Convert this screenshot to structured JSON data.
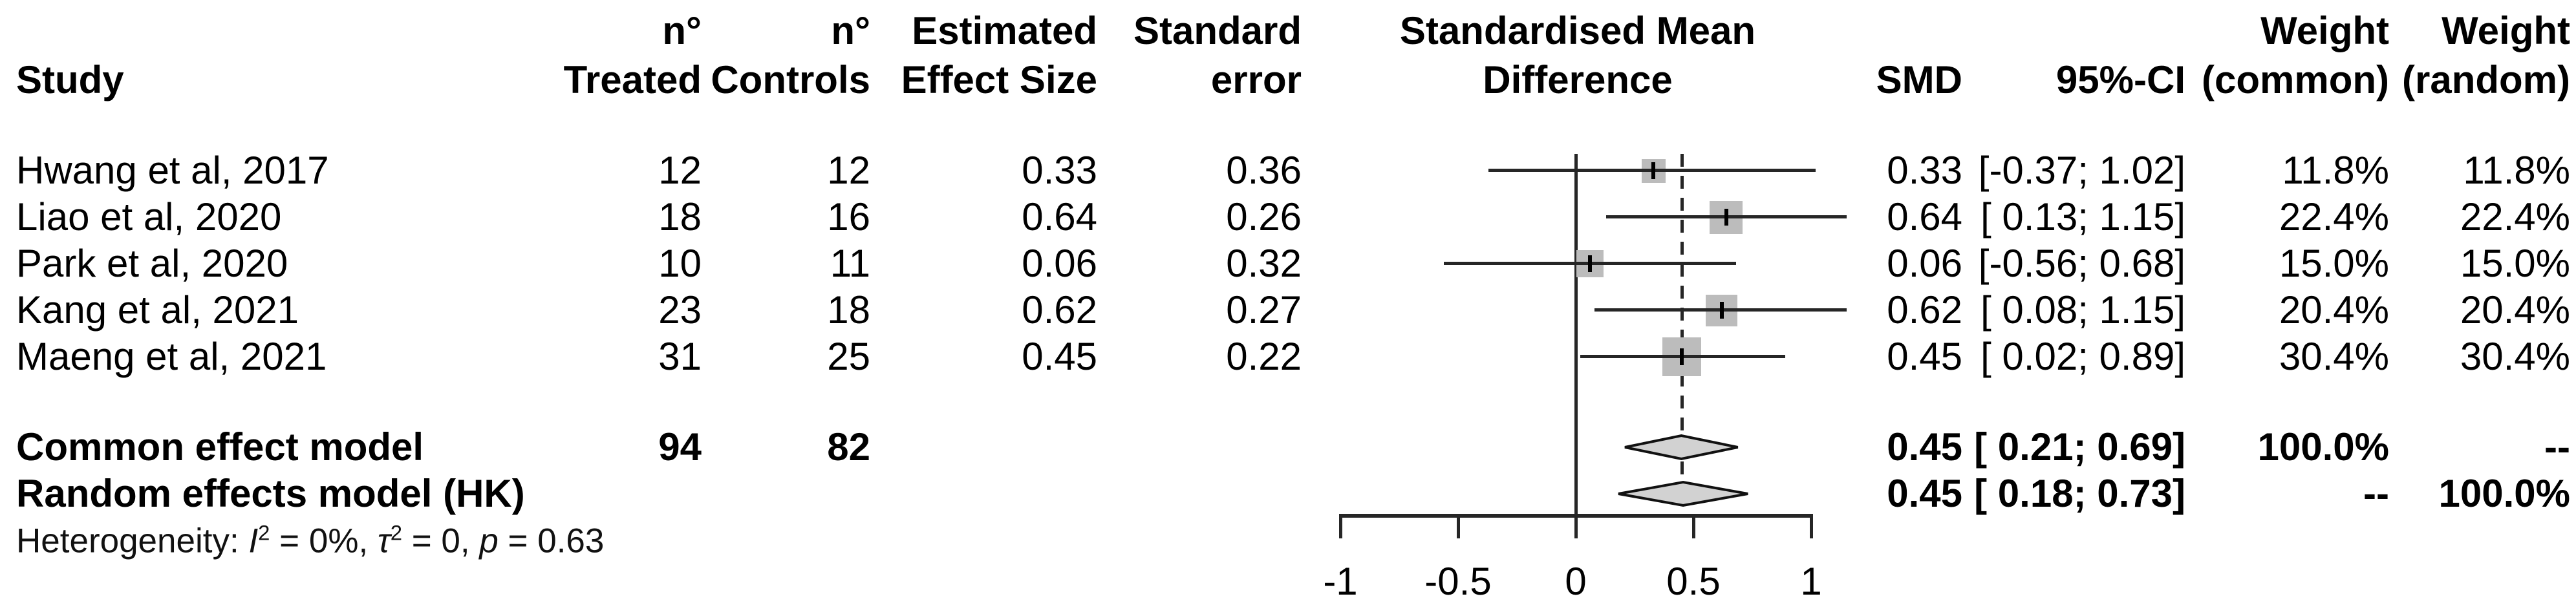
{
  "headers": {
    "study": "Study",
    "treated_line1": "n°",
    "treated_line2": "Treated",
    "controls_line1": "n°",
    "controls_line2": "Controls",
    "effect_line1": "Estimated",
    "effect_line2": "Effect Size",
    "se_line1": "Standard",
    "se_line2": "error",
    "plot_line1": "Standardised Mean",
    "plot_line2": "Difference",
    "smd": "SMD",
    "ci": "95%-CI",
    "weight_common_line1": "Weight",
    "weight_common_line2": "(common)",
    "weight_random_line1": "Weight",
    "weight_random_line2": "(random)"
  },
  "colors": {
    "square_fill": "#bcbcbc",
    "diamond_fill": "#d2d2d2",
    "diamond_stroke": "#111111",
    "line": "#262626",
    "text": "#000000"
  },
  "chart_data": {
    "type": "forest",
    "effect_measure": "Standardised Mean Difference",
    "x_axis": {
      "range": [
        -1,
        1
      ],
      "ticks": [
        -1,
        -0.5,
        0,
        0.5,
        1
      ],
      "tick_labels": [
        "-1",
        "-0.5",
        "0",
        "0.5",
        "1"
      ],
      "reference_line": 0,
      "dashed_line": 0.45
    },
    "studies": [
      {
        "name": "Hwang et al, 2017",
        "n_treated": "12",
        "n_controls": "12",
        "effect_size": "0.33",
        "standard_error": "0.36",
        "smd": 0.33,
        "ci_low": -0.37,
        "ci_high": 1.02,
        "smd_label": "0.33",
        "ci_label": "[-0.37; 1.02]",
        "weight_common": 11.8,
        "weight_random": 11.8,
        "weight_common_label": "11.8%",
        "weight_random_label": "11.8%"
      },
      {
        "name": "Liao et al, 2020",
        "n_treated": "18",
        "n_controls": "16",
        "effect_size": "0.64",
        "standard_error": "0.26",
        "smd": 0.64,
        "ci_low": 0.13,
        "ci_high": 1.15,
        "smd_label": "0.64",
        "ci_label": "[ 0.13; 1.15]",
        "weight_common": 22.4,
        "weight_random": 22.4,
        "weight_common_label": "22.4%",
        "weight_random_label": "22.4%"
      },
      {
        "name": "Park et al, 2020",
        "n_treated": "10",
        "n_controls": "11",
        "effect_size": "0.06",
        "standard_error": "0.32",
        "smd": 0.06,
        "ci_low": -0.56,
        "ci_high": 0.68,
        "smd_label": "0.06",
        "ci_label": "[-0.56; 0.68]",
        "weight_common": 15.0,
        "weight_random": 15.0,
        "weight_common_label": "15.0%",
        "weight_random_label": "15.0%"
      },
      {
        "name": "Kang et al, 2021",
        "n_treated": "23",
        "n_controls": "18",
        "effect_size": "0.62",
        "standard_error": "0.27",
        "smd": 0.62,
        "ci_low": 0.08,
        "ci_high": 1.15,
        "smd_label": "0.62",
        "ci_label": "[ 0.08; 1.15]",
        "weight_common": 20.4,
        "weight_random": 20.4,
        "weight_common_label": "20.4%",
        "weight_random_label": "20.4%"
      },
      {
        "name": "Maeng et al, 2021",
        "n_treated": "31",
        "n_controls": "25",
        "effect_size": "0.45",
        "standard_error": "0.22",
        "smd": 0.45,
        "ci_low": 0.02,
        "ci_high": 0.89,
        "smd_label": "0.45",
        "ci_label": "[ 0.02; 0.89]",
        "weight_common": 30.4,
        "weight_random": 30.4,
        "weight_common_label": "30.4%",
        "weight_random_label": "30.4%"
      }
    ],
    "models": [
      {
        "name": "Common effect model",
        "n_treated": "94",
        "n_controls": "82",
        "smd": 0.45,
        "ci_low": 0.21,
        "ci_high": 0.69,
        "smd_label": "0.45",
        "ci_label": "[ 0.21; 0.69]",
        "weight_common_label": "100.0%",
        "weight_random_label": "--"
      },
      {
        "name": "Random effects model (HK)",
        "n_treated": "",
        "n_controls": "",
        "smd": 0.45,
        "ci_low": 0.18,
        "ci_high": 0.73,
        "smd_label": "0.45",
        "ci_label": "[ 0.18; 0.73]",
        "weight_common_label": "--",
        "weight_random_label": "100.0%"
      }
    ],
    "heterogeneity": {
      "plain": "Heterogeneity: I² = 0%, τ² = 0, p = 0.63",
      "segments": [
        {
          "text": "Heterogeneity: "
        },
        {
          "text": "I",
          "style": "italic"
        },
        {
          "text": "2",
          "style": "sup"
        },
        {
          "text": " = 0%, "
        },
        {
          "text": "τ",
          "style": "italic"
        },
        {
          "text": "2",
          "style": "sup"
        },
        {
          "text": " = 0, "
        },
        {
          "text": "p",
          "style": "italic"
        },
        {
          "text": " = 0.63"
        }
      ]
    }
  }
}
